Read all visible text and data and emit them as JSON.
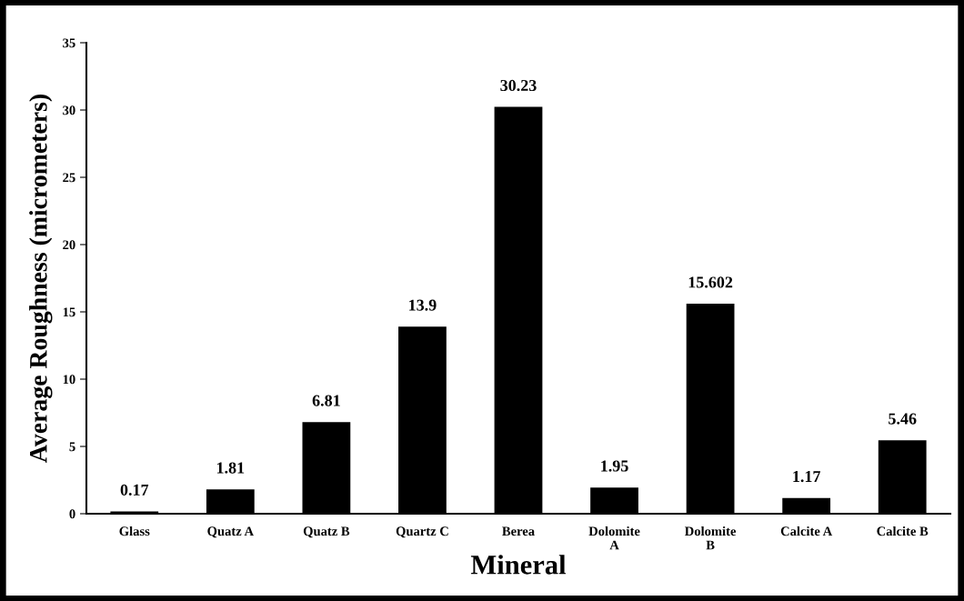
{
  "chart_data": {
    "type": "bar",
    "xlabel": "Mineral",
    "ylabel": "Average Roughness (micrometers)",
    "categories": [
      "Glass",
      "Quatz A",
      "Quatz B",
      "Quartz C",
      "Berea",
      "Dolomite\nA",
      "Dolomite\nB",
      "Calcite A",
      "Calcite B"
    ],
    "values": [
      0.17,
      1.81,
      6.81,
      13.9,
      30.23,
      1.95,
      15.602,
      1.17,
      5.46
    ],
    "color": "#000000",
    "ylim": [
      0,
      35
    ],
    "yticks": [
      0,
      5,
      10,
      15,
      20,
      25,
      30,
      35
    ],
    "grid": false,
    "data_labels": true,
    "legend": false
  }
}
